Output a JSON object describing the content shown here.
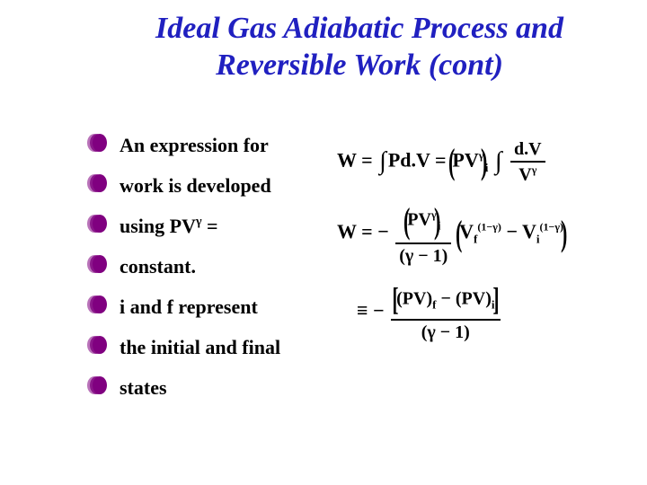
{
  "title_color": "#2020c0",
  "bullet_color": "#800080",
  "title_line1": "Ideal Gas Adiabatic Process and",
  "title_line2": "Reversible Work (cont)",
  "bullets": {
    "b0": "An expression for",
    "b1": "work is developed",
    "b2_pre": "using PV",
    "b2_sup": "γ",
    "b2_post": " =",
    "b3": "constant.",
    "b4": "i and f represent",
    "b5": "the initial and final",
    "b6": "states"
  },
  "eq": {
    "W": "W",
    "eq": "=",
    "P": "P",
    "d": "d.",
    "V": "V",
    "PV": "PV",
    "gamma": "γ",
    "one": "1",
    "minus": "−",
    "f": "f",
    "i": "i",
    "ident": "≡"
  },
  "style": {
    "title_fontsize": 34,
    "body_fontsize": 22,
    "eq_fontsize": 22,
    "background": "#ffffff"
  }
}
